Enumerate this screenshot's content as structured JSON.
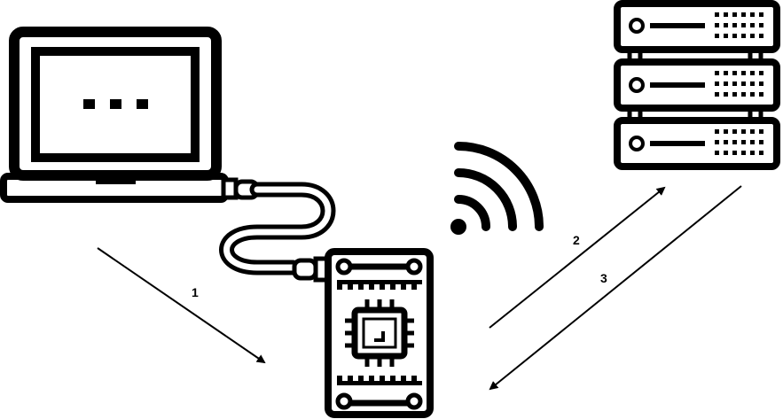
{
  "colors": {
    "ink": "#000000",
    "background": "#ffffff"
  },
  "nodes": {
    "laptop": {
      "icon": "laptop-icon",
      "screen_glyph": "three-dots"
    },
    "cable": {
      "icon": "usb-cable-icon"
    },
    "board": {
      "icon": "microcontroller-board-icon"
    },
    "wifi": {
      "icon": "wifi-signal-icon"
    },
    "server": {
      "icon": "server-rack-icon",
      "units": 3
    }
  },
  "steps": [
    {
      "label": "1",
      "from": "laptop",
      "to": "board"
    },
    {
      "label": "2",
      "from": "board",
      "to": "server"
    },
    {
      "label": "3",
      "from": "server",
      "to": "board"
    }
  ]
}
